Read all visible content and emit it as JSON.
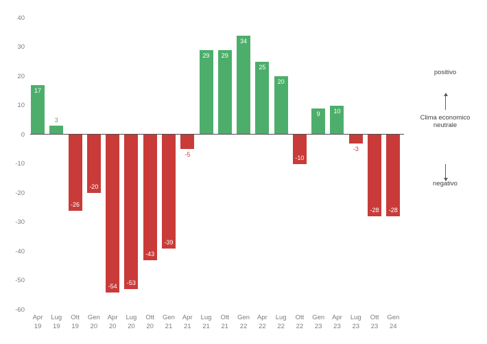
{
  "chart_data": {
    "type": "bar",
    "title": "",
    "xlabel": "",
    "ylabel": "",
    "ylim": [
      -60,
      40
    ],
    "yticks": [
      40,
      30,
      20,
      10,
      0,
      -10,
      -20,
      -30,
      -40,
      -50,
      -60
    ],
    "grid": false,
    "legend_position": "right",
    "categories": [
      {
        "month": "Apr",
        "year": "19"
      },
      {
        "month": "Lug",
        "year": "19"
      },
      {
        "month": "Ott",
        "year": "19"
      },
      {
        "month": "Gen",
        "year": "20"
      },
      {
        "month": "Apr",
        "year": "20"
      },
      {
        "month": "Lug",
        "year": "20"
      },
      {
        "month": "Ott",
        "year": "20"
      },
      {
        "month": "Gen",
        "year": "21"
      },
      {
        "month": "Apr",
        "year": "21"
      },
      {
        "month": "Lug",
        "year": "21"
      },
      {
        "month": "Ott",
        "year": "21"
      },
      {
        "month": "Gen",
        "year": "22"
      },
      {
        "month": "Apr",
        "year": "22"
      },
      {
        "month": "Lug",
        "year": "22"
      },
      {
        "month": "Ott",
        "year": "22"
      },
      {
        "month": "Gen",
        "year": "23"
      },
      {
        "month": "Apr",
        "year": "23"
      },
      {
        "month": "Lug",
        "year": "23"
      },
      {
        "month": "Ott",
        "year": "23"
      },
      {
        "month": "Gen",
        "year": "24"
      }
    ],
    "values": [
      17,
      3,
      -26,
      -20,
      -54,
      -53,
      -43,
      -39,
      -5,
      29,
      29,
      34,
      25,
      20,
      -10,
      9,
      10,
      -3,
      -28,
      -28
    ],
    "colors": {
      "positive": "#4dae6b",
      "negative": "#c93b39",
      "axis_text": "#7b7b7b",
      "zero_line": "#4b4b4b",
      "label_inside": "#ffffff",
      "legend_text": "#3f3f3f"
    },
    "legend": {
      "positive": "positivo",
      "neutral_line1": "Clima economico",
      "neutral_line2": "neutrale",
      "negative": "negativo"
    }
  }
}
